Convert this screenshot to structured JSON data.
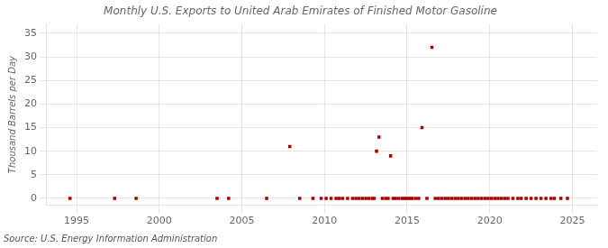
{
  "chart_data": {
    "type": "scatter",
    "title": "Monthly U.S. Exports to United Arab Emirates of Finished Motor Gasoline",
    "ylabel": "Thousand Barrels per Day",
    "annotations": [
      "Source: U.S. Energy Information Administration"
    ],
    "color": "#aa0000",
    "marker": "square",
    "grid": true,
    "xlim": [
      1993.2,
      2026.5
    ],
    "ylim": [
      -1.5,
      37
    ],
    "xticks": [
      1995,
      2000,
      2005,
      2010,
      2015,
      2020,
      2025
    ],
    "yticks": [
      0,
      5,
      10,
      15,
      20,
      25,
      30,
      35
    ],
    "x": [
      1994.6,
      1997.3,
      1998.6,
      2003.5,
      2004.2,
      2006.5,
      2007.9,
      2008.5,
      2009.3,
      2009.8,
      2010.1,
      2010.4,
      2010.7,
      2010.9,
      2011.1,
      2011.4,
      2011.7,
      2011.9,
      2012.1,
      2012.3,
      2012.5,
      2012.7,
      2012.9,
      2013.0,
      2013.15,
      2013.3,
      2013.5,
      2013.7,
      2013.85,
      2014.0,
      2014.15,
      2014.3,
      2014.5,
      2014.7,
      2014.85,
      2015.0,
      2015.15,
      2015.3,
      2015.5,
      2015.7,
      2015.9,
      2016.2,
      2016.5,
      2016.7,
      2016.9,
      2017.1,
      2017.3,
      2017.5,
      2017.7,
      2017.9,
      2018.1,
      2018.3,
      2018.5,
      2018.7,
      2018.9,
      2019.1,
      2019.3,
      2019.5,
      2019.7,
      2019.9,
      2020.1,
      2020.3,
      2020.5,
      2020.7,
      2020.9,
      2021.1,
      2021.4,
      2021.7,
      2021.9,
      2022.2,
      2022.5,
      2022.8,
      2023.1,
      2023.4,
      2023.7,
      2023.9,
      2024.3,
      2024.7
    ],
    "values": [
      0.0,
      0.0,
      0.0,
      0.0,
      0.0,
      0.0,
      11.0,
      0.0,
      0.0,
      0.0,
      0.0,
      0.0,
      0.0,
      0.0,
      0.0,
      0.0,
      0.0,
      0.0,
      0.0,
      0.0,
      0.0,
      0.0,
      0.0,
      0.0,
      10.0,
      13.0,
      0.0,
      0.0,
      0.0,
      9.0,
      0.0,
      0.0,
      0.0,
      0.0,
      0.0,
      0.0,
      0.0,
      0.0,
      0.0,
      0.0,
      15.0,
      0.0,
      32.0,
      0.0,
      0.0,
      0.0,
      0.0,
      0.0,
      0.0,
      0.0,
      0.0,
      0.0,
      0.0,
      0.0,
      0.0,
      0.0,
      0.0,
      0.0,
      0.0,
      0.0,
      0.0,
      0.0,
      0.0,
      0.0,
      0.0,
      0.0,
      0.0,
      0.0,
      0.0,
      0.0,
      0.0,
      0.0,
      0.0,
      0.0,
      0.0,
      0.0,
      0.0,
      0.0
    ]
  }
}
